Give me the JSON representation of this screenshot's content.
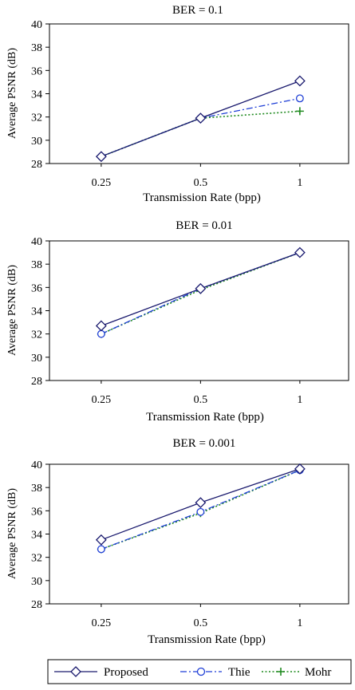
{
  "chart_data": [
    {
      "type": "line",
      "title": "BER = 0.1",
      "xlabel": "Transmission Rate (bpp)",
      "ylabel": "Average PSNR (dB)",
      "categories": [
        "0.25",
        "0.5",
        "1"
      ],
      "ylim": [
        28,
        40
      ],
      "yticks": [
        28,
        30,
        32,
        34,
        36,
        38,
        40
      ],
      "grid": false,
      "series": [
        {
          "name": "Proposed",
          "values": [
            28.6,
            31.9,
            35.1
          ]
        },
        {
          "name": "Thie",
          "values": [
            28.6,
            31.9,
            33.6
          ]
        },
        {
          "name": "Mohr",
          "values": [
            28.6,
            31.9,
            32.5
          ]
        }
      ]
    },
    {
      "type": "line",
      "title": "BER = 0.01",
      "xlabel": "Transmission Rate (bpp)",
      "ylabel": "Average PSNR (dB)",
      "categories": [
        "0.25",
        "0.5",
        "1"
      ],
      "ylim": [
        28,
        40
      ],
      "yticks": [
        28,
        30,
        32,
        34,
        36,
        38,
        40
      ],
      "grid": false,
      "series": [
        {
          "name": "Proposed",
          "values": [
            32.7,
            35.9,
            39.0
          ]
        },
        {
          "name": "Thie",
          "values": [
            32.0,
            35.9,
            39.0
          ]
        },
        {
          "name": "Mohr",
          "values": [
            32.0,
            35.8,
            39.0
          ]
        }
      ]
    },
    {
      "type": "line",
      "title": "BER = 0.001",
      "xlabel": "Transmission Rate (bpp)",
      "ylabel": "Average PSNR (dB)",
      "categories": [
        "0.25",
        "0.5",
        "1"
      ],
      "ylim": [
        28,
        40
      ],
      "yticks": [
        28,
        30,
        32,
        34,
        36,
        38,
        40
      ],
      "grid": false,
      "series": [
        {
          "name": "Proposed",
          "values": [
            33.5,
            36.7,
            39.6
          ]
        },
        {
          "name": "Thie",
          "values": [
            32.7,
            35.9,
            39.5
          ]
        },
        {
          "name": "Mohr",
          "values": [
            32.7,
            35.8,
            39.5
          ]
        }
      ]
    }
  ],
  "legend": {
    "placement": "bottom",
    "entries": [
      "Proposed",
      "Thie",
      "Mohr"
    ]
  },
  "series_styles": {
    "Proposed": {
      "color": "#1a1a6e",
      "marker": "diamond",
      "dash": "solid"
    },
    "Thie": {
      "color": "#1f3fd6",
      "marker": "circle",
      "dash": "dash-dot"
    },
    "Mohr": {
      "color": "#1f8a1f",
      "marker": "plus",
      "dash": "dotted"
    }
  }
}
